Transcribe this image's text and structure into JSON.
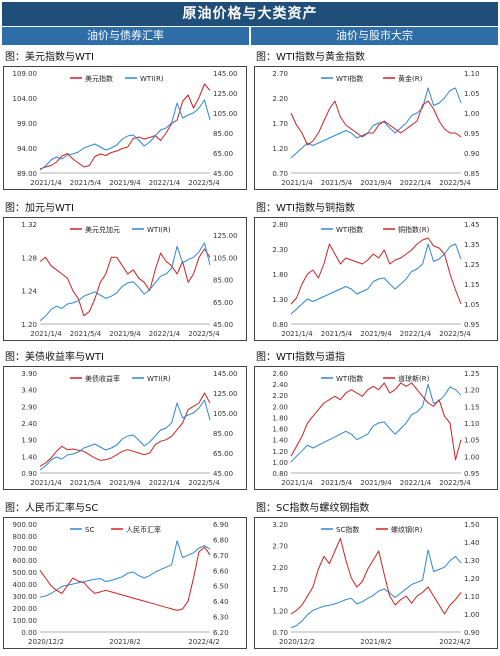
{
  "header": {
    "title": "原油价格与大类资产",
    "left_column": "油价与债券汇率",
    "right_column": "油价与股市大宗"
  },
  "colors": {
    "header_bg": "#1f4e79",
    "subheader_bg": "#2e6ea8",
    "series_red": "#cc2222",
    "series_blue": "#2f86d4"
  },
  "chart_data": [
    {
      "id": "c1",
      "type": "line",
      "title": "图：美元指数与WTI",
      "x_ticks": [
        "2021/1/4",
        "2021/5/4",
        "2021/9/4",
        "2022/1/4",
        "2022/5/4"
      ],
      "y_left": {
        "ticks": [
          "89.00",
          "94.00",
          "99.00",
          "104.00",
          "109.00"
        ],
        "range": [
          89,
          109
        ]
      },
      "y_right": {
        "ticks": [
          "45.00",
          "65.00",
          "85.00",
          "105.00",
          "125.00",
          "145.00"
        ],
        "range": [
          45,
          145
        ]
      },
      "legend_position": "top-center",
      "series": [
        {
          "name": "美元指数",
          "axis": "left",
          "color": "#cc2222",
          "values": [
            89.8,
            90.2,
            90.5,
            91.2,
            92.4,
            92.9,
            91.8,
            91.0,
            90.2,
            90.5,
            92.3,
            92.8,
            92.5,
            93.1,
            93.4,
            93.9,
            94.2,
            95.9,
            96.2,
            95.8,
            96.1,
            96.5,
            95.5,
            97.0,
            98.9,
            99.6,
            103.3,
            104.6,
            102.0,
            104.1,
            106.8,
            105.5
          ]
        },
        {
          "name": "WTI(R)",
          "axis": "right",
          "color": "#2f86d4",
          "values": [
            48,
            52,
            58,
            61,
            59,
            63,
            64,
            66,
            70,
            72,
            74,
            71,
            68,
            70,
            73,
            79,
            82,
            83,
            78,
            72,
            76,
            82,
            88,
            90,
            95,
            115,
            100,
            103,
            105,
            110,
            118,
            98
          ]
        }
      ]
    },
    {
      "id": "c2",
      "type": "line",
      "title": "图：WTI指数与黄金指数",
      "x_ticks": [
        "2021/1/4",
        "2021/5/4",
        "2021/9/4",
        "2022/1/4",
        "2022/5/4"
      ],
      "y_left": {
        "ticks": [
          "0.70",
          "1.20",
          "1.70",
          "2.20",
          "2.70"
        ],
        "range": [
          0.7,
          2.7
        ]
      },
      "y_right": {
        "ticks": [
          "0.85",
          "0.90",
          "0.95",
          "1.00",
          "1.05",
          "1.10"
        ],
        "range": [
          0.85,
          1.1
        ]
      },
      "legend_position": "top-center",
      "series": [
        {
          "name": "WTI指数",
          "axis": "left",
          "color": "#2f86d4",
          "values": [
            1.0,
            1.1,
            1.2,
            1.3,
            1.25,
            1.3,
            1.35,
            1.4,
            1.45,
            1.5,
            1.55,
            1.5,
            1.4,
            1.45,
            1.5,
            1.65,
            1.7,
            1.72,
            1.6,
            1.5,
            1.6,
            1.7,
            1.85,
            1.9,
            2.0,
            2.4,
            2.05,
            2.1,
            2.2,
            2.35,
            2.4,
            2.1
          ]
        },
        {
          "name": "黄金(R)",
          "axis": "right",
          "color": "#cc2222",
          "values": [
            1.0,
            0.97,
            0.95,
            0.92,
            0.93,
            0.95,
            0.98,
            1.01,
            1.03,
            0.99,
            0.97,
            0.96,
            0.95,
            0.94,
            0.95,
            0.95,
            0.97,
            0.98,
            0.97,
            0.96,
            0.95,
            0.96,
            0.97,
            0.98,
            1.02,
            1.03,
            1.01,
            0.98,
            0.96,
            0.95,
            0.95,
            0.94
          ]
        }
      ]
    },
    {
      "id": "c3",
      "type": "line",
      "title": "图：加元与WTI",
      "x_ticks": [
        "2021/1/4",
        "2021/5/4",
        "2021/9/4",
        "2022/1/4",
        "2022/5/4"
      ],
      "y_left": {
        "ticks": [
          "1.20",
          "1.24",
          "1.28",
          "1.32"
        ],
        "range": [
          1.2,
          1.32
        ]
      },
      "y_right": {
        "ticks": [
          "45.00",
          "65.00",
          "85.00",
          "105.00",
          "125.00"
        ],
        "range": [
          45,
          135
        ]
      },
      "legend_position": "top-center",
      "series": [
        {
          "name": "美元兑加元",
          "axis": "left",
          "color": "#cc2222",
          "values": [
            1.275,
            1.28,
            1.27,
            1.265,
            1.26,
            1.255,
            1.24,
            1.23,
            1.21,
            1.215,
            1.23,
            1.25,
            1.26,
            1.28,
            1.28,
            1.27,
            1.26,
            1.265,
            1.255,
            1.25,
            1.24,
            1.265,
            1.285,
            1.275,
            1.27,
            1.26,
            1.275,
            1.25,
            1.26,
            1.28,
            1.29,
            1.28
          ]
        },
        {
          "name": "WTI(R)",
          "axis": "right",
          "color": "#2f86d4",
          "values": [
            48,
            52,
            58,
            61,
            59,
            63,
            64,
            66,
            70,
            72,
            74,
            71,
            68,
            70,
            73,
            79,
            82,
            83,
            78,
            72,
            76,
            82,
            88,
            90,
            95,
            115,
            100,
            103,
            105,
            110,
            118,
            98
          ]
        }
      ]
    },
    {
      "id": "c4",
      "type": "line",
      "title": "图：WTI指数与铜指数",
      "x_ticks": [
        "2021/1/4",
        "2021/5/4",
        "2021/9/4",
        "2022/1/4",
        "2022/5/4"
      ],
      "y_left": {
        "ticks": [
          "0.80",
          "1.30",
          "1.80",
          "2.30",
          "2.80"
        ],
        "range": [
          0.8,
          2.8
        ]
      },
      "y_right": {
        "ticks": [
          "0.95",
          "1.05",
          "1.15",
          "1.25",
          "1.35",
          "1.45"
        ],
        "range": [
          0.95,
          1.45
        ]
      },
      "legend_position": "top-center",
      "series": [
        {
          "name": "WTI指数",
          "axis": "left",
          "color": "#2f86d4",
          "values": [
            1.0,
            1.1,
            1.2,
            1.3,
            1.25,
            1.3,
            1.35,
            1.4,
            1.45,
            1.5,
            1.55,
            1.5,
            1.4,
            1.45,
            1.5,
            1.65,
            1.7,
            1.72,
            1.6,
            1.5,
            1.6,
            1.7,
            1.85,
            1.9,
            2.0,
            2.4,
            2.05,
            2.1,
            2.2,
            2.35,
            2.4,
            2.1
          ]
        },
        {
          "name": "铜指数(R)",
          "axis": "right",
          "color": "#cc2222",
          "values": [
            1.05,
            1.08,
            1.15,
            1.2,
            1.22,
            1.18,
            1.25,
            1.35,
            1.3,
            1.25,
            1.28,
            1.27,
            1.26,
            1.25,
            1.27,
            1.3,
            1.28,
            1.32,
            1.25,
            1.27,
            1.28,
            1.3,
            1.32,
            1.35,
            1.37,
            1.38,
            1.34,
            1.33,
            1.3,
            1.2,
            1.12,
            1.05
          ]
        }
      ]
    },
    {
      "id": "c5",
      "type": "line",
      "title": "图：美债收益率与WTI",
      "x_ticks": [
        "2021/1/4",
        "2021/5/4",
        "2021/9/4",
        "2022/1/4",
        "2022/5/4"
      ],
      "y_left": {
        "ticks": [
          "0.90",
          "1.40",
          "1.90",
          "2.40",
          "2.90",
          "3.40",
          "3.90"
        ],
        "range": [
          0.9,
          3.9
        ]
      },
      "y_right": {
        "ticks": [
          "45.00",
          "65.00",
          "85.00",
          "105.00",
          "125.00",
          "145.00"
        ],
        "range": [
          45,
          145
        ]
      },
      "legend_position": "top-center",
      "series": [
        {
          "name": "美债收益率",
          "axis": "left",
          "color": "#cc2222",
          "values": [
            1.1,
            1.2,
            1.35,
            1.55,
            1.7,
            1.6,
            1.62,
            1.58,
            1.55,
            1.45,
            1.35,
            1.28,
            1.3,
            1.35,
            1.45,
            1.55,
            1.6,
            1.55,
            1.5,
            1.45,
            1.5,
            1.75,
            1.85,
            1.9,
            2.0,
            2.2,
            2.4,
            2.8,
            2.9,
            3.0,
            3.3,
            3.0
          ]
        },
        {
          "name": "WTI(R)",
          "axis": "right",
          "color": "#2f86d4",
          "values": [
            48,
            52,
            58,
            61,
            59,
            63,
            64,
            66,
            70,
            72,
            74,
            71,
            68,
            70,
            73,
            79,
            82,
            83,
            78,
            72,
            76,
            82,
            88,
            90,
            95,
            115,
            100,
            103,
            105,
            110,
            118,
            98
          ]
        }
      ]
    },
    {
      "id": "c6",
      "type": "line",
      "title": "图：WTI指数与道指",
      "x_ticks": [
        "2021/1/4",
        "2021/5/4",
        "2021/9/4",
        "2022/1/4",
        "2022/5/4"
      ],
      "y_left": {
        "ticks": [
          "0.80",
          "1.00",
          "1.20",
          "1.40",
          "1.60",
          "1.80",
          "2.00",
          "2.20",
          "2.40",
          "2.60"
        ],
        "range": [
          0.8,
          2.6
        ]
      },
      "y_right": {
        "ticks": [
          "0.95",
          "1.00",
          "1.05",
          "1.10",
          "1.15",
          "1.20",
          "1.25"
        ],
        "range": [
          0.95,
          1.25
        ]
      },
      "legend_position": "top-center",
      "series": [
        {
          "name": "WTI指数",
          "axis": "left",
          "color": "#2f86d4",
          "values": [
            1.0,
            1.1,
            1.2,
            1.3,
            1.25,
            1.3,
            1.35,
            1.4,
            1.45,
            1.5,
            1.55,
            1.5,
            1.4,
            1.45,
            1.5,
            1.65,
            1.7,
            1.72,
            1.6,
            1.5,
            1.6,
            1.7,
            1.85,
            1.9,
            2.0,
            2.4,
            2.05,
            2.1,
            2.2,
            2.35,
            2.3,
            2.2
          ]
        },
        {
          "name": "道琼斯(R)",
          "axis": "right",
          "color": "#cc2222",
          "values": [
            1.0,
            1.03,
            1.06,
            1.1,
            1.12,
            1.14,
            1.16,
            1.17,
            1.18,
            1.17,
            1.19,
            1.2,
            1.19,
            1.18,
            1.2,
            1.21,
            1.2,
            1.22,
            1.19,
            1.2,
            1.22,
            1.21,
            1.22,
            1.2,
            1.18,
            1.16,
            1.15,
            1.17,
            1.12,
            1.1,
            0.99,
            1.05
          ]
        }
      ]
    },
    {
      "id": "c7",
      "type": "line",
      "title": "图：人民币汇率与SC",
      "x_ticks": [
        "2020/12/2",
        "2021/8/2",
        "2022/4/2"
      ],
      "y_left": {
        "ticks": [
          "0.00",
          "100.00",
          "200.00",
          "300.00",
          "400.00",
          "500.00",
          "600.00",
          "700.00",
          "800.00",
          "900.00"
        ],
        "range": [
          0,
          900
        ]
      },
      "y_right": {
        "ticks": [
          "6.20",
          "6.30",
          "6.40",
          "6.50",
          "6.60",
          "6.70",
          "6.80",
          "6.90"
        ],
        "range": [
          6.2,
          6.9
        ]
      },
      "legend_position": "top-center",
      "series": [
        {
          "name": "SC",
          "axis": "left",
          "color": "#2f86d4",
          "values": [
            290,
            300,
            320,
            350,
            380,
            390,
            400,
            410,
            420,
            430,
            440,
            445,
            420,
            430,
            445,
            460,
            490,
            500,
            470,
            450,
            470,
            500,
            520,
            540,
            560,
            760,
            620,
            640,
            660,
            700,
            720,
            690
          ]
        },
        {
          "name": "人民币汇率",
          "axis": "right",
          "color": "#cc2222",
          "values": [
            6.6,
            6.55,
            6.5,
            6.47,
            6.45,
            6.5,
            6.55,
            6.53,
            6.52,
            6.48,
            6.45,
            6.46,
            6.47,
            6.46,
            6.45,
            6.44,
            6.43,
            6.42,
            6.41,
            6.4,
            6.39,
            6.38,
            6.37,
            6.36,
            6.35,
            6.34,
            6.35,
            6.4,
            6.55,
            6.72,
            6.75,
            6.7
          ]
        }
      ]
    },
    {
      "id": "c8",
      "type": "line",
      "title": "图：SC指数与螺纹钢指数",
      "x_ticks": [
        "2020/12/2",
        "2021/8/2",
        "2022/4/2"
      ],
      "y_left": {
        "ticks": [
          "0.70",
          "1.20",
          "1.70",
          "2.20",
          "2.70",
          "3.20"
        ],
        "range": [
          0.7,
          3.2
        ]
      },
      "y_right": {
        "ticks": [
          "0.90",
          "1.00",
          "1.10",
          "1.20",
          "1.30",
          "1.40",
          "1.50"
        ],
        "range": [
          0.9,
          1.5
        ]
      },
      "legend_position": "top-center",
      "series": [
        {
          "name": "SC指数",
          "axis": "left",
          "color": "#2f86d4",
          "values": [
            0.8,
            0.85,
            0.95,
            1.1,
            1.2,
            1.25,
            1.3,
            1.32,
            1.35,
            1.4,
            1.45,
            1.48,
            1.35,
            1.4,
            1.48,
            1.55,
            1.65,
            1.7,
            1.6,
            1.5,
            1.6,
            1.7,
            1.8,
            1.85,
            1.9,
            2.6,
            2.1,
            2.15,
            2.2,
            2.35,
            2.45,
            2.3
          ]
        },
        {
          "name": "螺纹钢(R)",
          "axis": "right",
          "color": "#cc2222",
          "values": [
            1.0,
            1.02,
            1.05,
            1.1,
            1.15,
            1.25,
            1.32,
            1.28,
            1.35,
            1.42,
            1.3,
            1.2,
            1.15,
            1.18,
            1.25,
            1.3,
            1.35,
            1.22,
            1.1,
            1.05,
            1.08,
            1.1,
            1.06,
            1.1,
            1.12,
            1.15,
            1.1,
            1.05,
            1.0,
            1.05,
            1.08,
            1.12
          ]
        }
      ]
    }
  ]
}
